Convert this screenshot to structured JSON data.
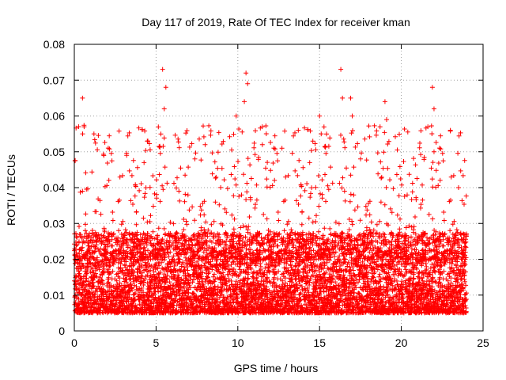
{
  "chart_data": {
    "type": "scatter",
    "title": "Day 117 of 2019, Rate Of TEC Index for receiver kman",
    "xlabel": "GPS time / hours",
    "ylabel": "ROTI / TECUs",
    "xlim": [
      0,
      25
    ],
    "ylim": [
      0,
      0.08
    ],
    "xticks": [
      0,
      5,
      10,
      15,
      20,
      25
    ],
    "xtick_labels": [
      "0",
      "5",
      "10",
      "15",
      "20",
      "25"
    ],
    "yticks": [
      0,
      0.01,
      0.02,
      0.03,
      0.04,
      0.05,
      0.06,
      0.07,
      0.08
    ],
    "ytick_labels": [
      "0",
      "0.01",
      "0.02",
      "0.03",
      "0.04",
      "0.05",
      "0.06",
      "0.07",
      "0.08"
    ],
    "grid": true,
    "marker": "+",
    "series": [
      {
        "name": "ROTI",
        "color": "#ff0000",
        "time_range_hours": [
          0,
          24
        ],
        "sample_interval_hours": 0.01,
        "typical_range": [
          0.005,
          0.02
        ],
        "peak_points": [
          {
            "x": 0.5,
            "y": 0.065
          },
          {
            "x": 0.6,
            "y": 0.057
          },
          {
            "x": 1.2,
            "y": 0.055
          },
          {
            "x": 3.2,
            "y": 0.049
          },
          {
            "x": 4.5,
            "y": 0.053
          },
          {
            "x": 5.4,
            "y": 0.073
          },
          {
            "x": 5.6,
            "y": 0.068
          },
          {
            "x": 5.5,
            "y": 0.062
          },
          {
            "x": 8.0,
            "y": 0.052
          },
          {
            "x": 9.9,
            "y": 0.06
          },
          {
            "x": 10.5,
            "y": 0.072
          },
          {
            "x": 10.6,
            "y": 0.069
          },
          {
            "x": 10.4,
            "y": 0.064
          },
          {
            "x": 11.5,
            "y": 0.052
          },
          {
            "x": 12.7,
            "y": 0.051
          },
          {
            "x": 13.7,
            "y": 0.056
          },
          {
            "x": 15.0,
            "y": 0.06
          },
          {
            "x": 15.1,
            "y": 0.055
          },
          {
            "x": 16.3,
            "y": 0.073
          },
          {
            "x": 16.4,
            "y": 0.065
          },
          {
            "x": 16.9,
            "y": 0.065
          },
          {
            "x": 17.0,
            "y": 0.06
          },
          {
            "x": 18.7,
            "y": 0.057
          },
          {
            "x": 19.0,
            "y": 0.064
          },
          {
            "x": 19.1,
            "y": 0.059
          },
          {
            "x": 21.9,
            "y": 0.068
          },
          {
            "x": 22.0,
            "y": 0.062
          },
          {
            "x": 22.0,
            "y": 0.05
          },
          {
            "x": 23.0,
            "y": 0.056
          },
          {
            "x": 23.5,
            "y": 0.04
          }
        ]
      }
    ]
  }
}
